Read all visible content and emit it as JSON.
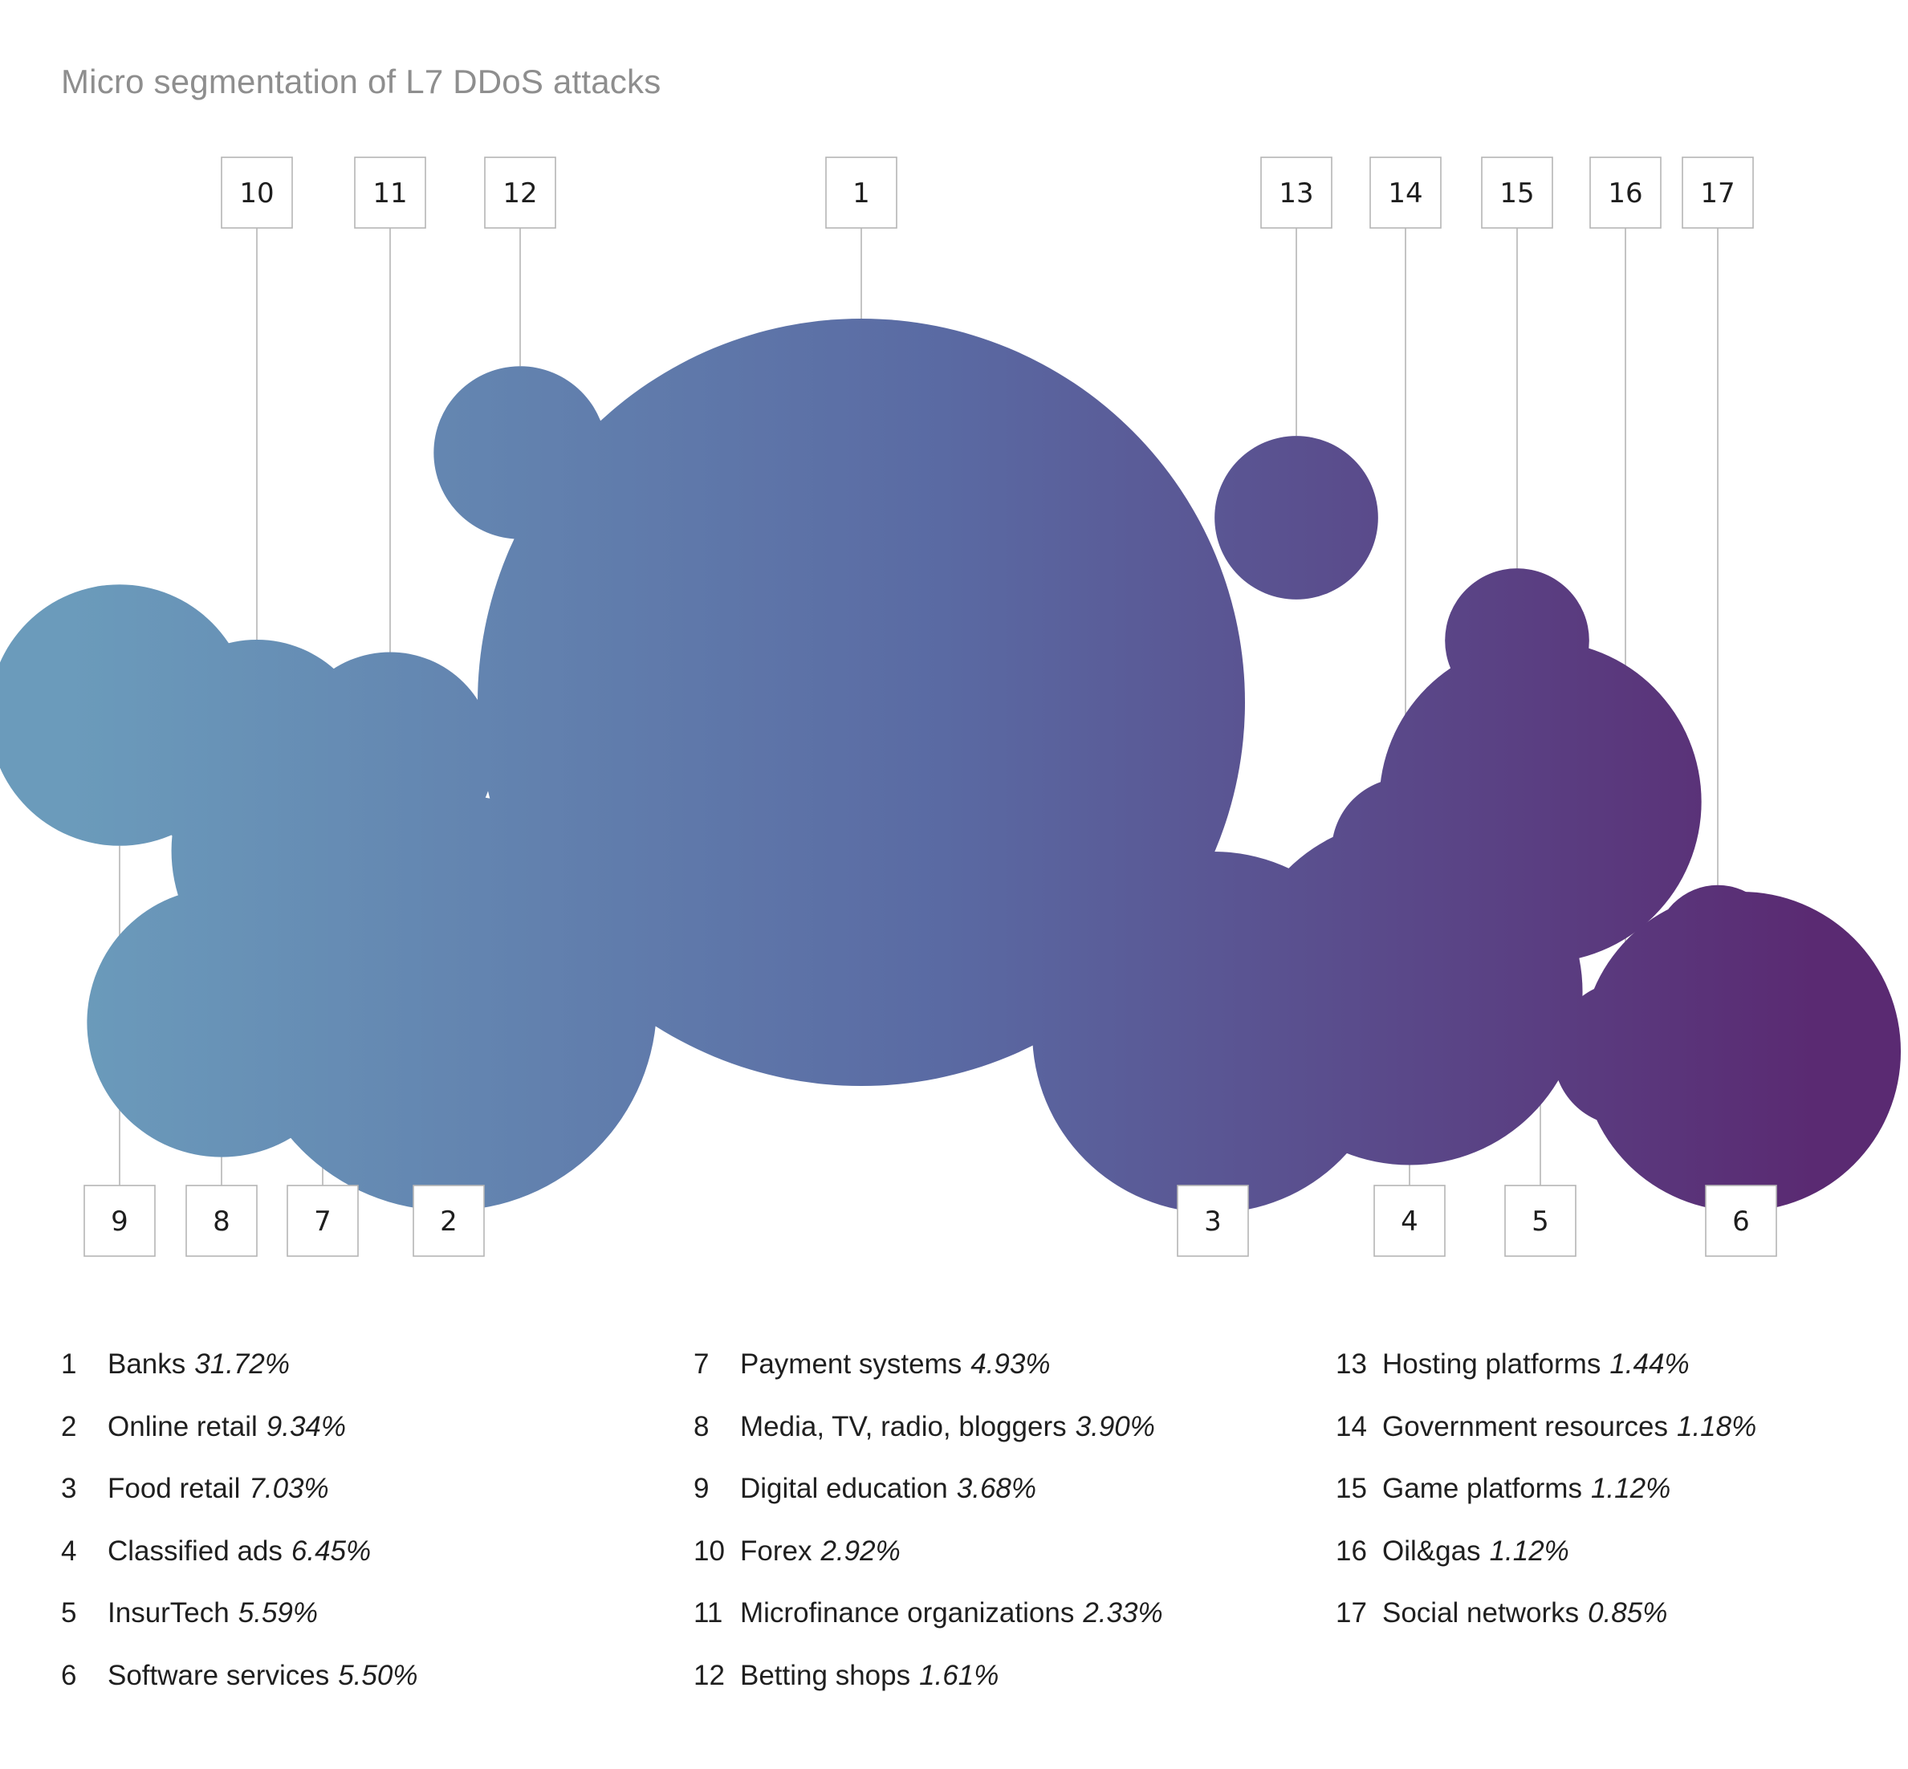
{
  "chart_data": {
    "type": "bubble",
    "title": "Micro segmentation of L7 DDoS attacks",
    "items": [
      {
        "id": "1",
        "name": "Banks",
        "value": 31.72,
        "label": "31.72%"
      },
      {
        "id": "2",
        "name": "Online retail",
        "value": 9.34,
        "label": "9.34%"
      },
      {
        "id": "3",
        "name": "Food retail",
        "value": 7.03,
        "label": "7.03%"
      },
      {
        "id": "4",
        "name": "Classified ads",
        "value": 6.45,
        "label": "6.45%"
      },
      {
        "id": "5",
        "name": "InsurTech",
        "value": 5.59,
        "label": "5.59%"
      },
      {
        "id": "6",
        "name": "Software services",
        "value": 5.5,
        "label": "5.50%"
      },
      {
        "id": "7",
        "name": "Payment systems",
        "value": 4.93,
        "label": "4.93%"
      },
      {
        "id": "8",
        "name": "Media, TV, radio, bloggers",
        "value": 3.9,
        "label": "3.90%"
      },
      {
        "id": "9",
        "name": "Digital education",
        "value": 3.68,
        "label": "3.68%"
      },
      {
        "id": "10",
        "name": "Forex",
        "value": 2.92,
        "label": "2.92%"
      },
      {
        "id": "11",
        "name": "Microfinance organizations",
        "value": 2.33,
        "label": "2.33%"
      },
      {
        "id": "12",
        "name": "Betting shops",
        "value": 1.61,
        "label": "1.61%"
      },
      {
        "id": "13",
        "name": "Hosting platforms",
        "value": 1.44,
        "label": "1.44%"
      },
      {
        "id": "14",
        "name": "Government resources",
        "value": 1.18,
        "label": "1.18%"
      },
      {
        "id": "15",
        "name": "Game platforms",
        "value": 1.12,
        "label": "1.12%"
      },
      {
        "id": "16",
        "name": "Oil&gas",
        "value": 1.12,
        "label": "1.12%"
      },
      {
        "id": "17",
        "name": "Social networks",
        "value": 0.85,
        "label": "0.85%"
      }
    ],
    "colors": {
      "gradient_start": "#6b9bbb",
      "gradient_mid": "#5a6aa3",
      "gradient_end": "#5a2a72",
      "connector": "#b5b5b5",
      "label_box_border": "#b5b5b5"
    }
  }
}
